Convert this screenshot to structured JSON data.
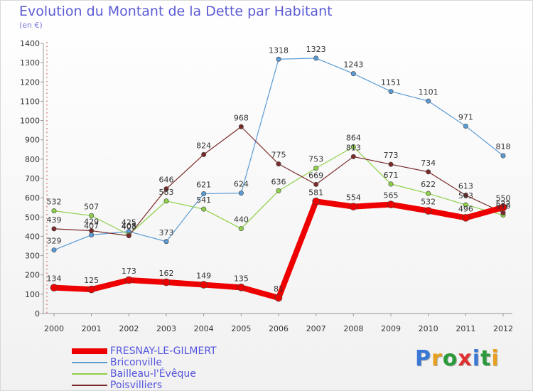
{
  "title": "Evolution du Montant de la Dette par Habitant",
  "subtitle": "(en €)",
  "logo": {
    "text": "Proxiti",
    "letter_colors": [
      "#3a78d6",
      "#e8a020",
      "#2a9a3a",
      "#e03030",
      "#3a78d6",
      "#2a9a3a",
      "#e8a020"
    ]
  },
  "chart_data": {
    "type": "line",
    "x": [
      "2000",
      "2001",
      "2002",
      "2003",
      "2004",
      "2005",
      "2006",
      "2007",
      "2008",
      "2009",
      "2010",
      "2011",
      "2012"
    ],
    "ylim": [
      0,
      1400
    ],
    "yticks": [
      0,
      100,
      200,
      300,
      400,
      500,
      600,
      700,
      800,
      900,
      1000,
      1100,
      1200,
      1300,
      1400
    ],
    "grid": false,
    "legend_position": "bottom-left",
    "series": [
      {
        "name": "FRESNAY-LE-GILMERT",
        "color": "#ee0000",
        "width": 8,
        "values": [
          134,
          125,
          173,
          162,
          149,
          135,
          81,
          581,
          554,
          565,
          532,
          496,
          550
        ],
        "labels": [
          "134",
          "125",
          "173",
          "162",
          "149",
          "135",
          "81",
          "581",
          "554",
          "565",
          "532",
          "496",
          "550"
        ]
      },
      {
        "name": "Briconville",
        "color": "#5b9bd5",
        "width": 1.2,
        "values": [
          329,
          407,
          425,
          373,
          621,
          624,
          1318,
          1323,
          1243,
          1151,
          1101,
          971,
          818
        ],
        "labels": [
          "329",
          "407",
          "425",
          "373",
          "621",
          "624",
          "1318",
          "1323",
          "1243",
          "1151",
          "1101",
          "971",
          "818"
        ]
      },
      {
        "name": "Bailleau-l'Évêque",
        "color": "#8ed04a",
        "width": 1.2,
        "values": [
          532,
          507,
          408,
          583,
          541,
          440,
          636,
          753,
          864,
          671,
          622,
          563,
          510
        ],
        "labels": [
          "532",
          "507",
          "408",
          "583",
          "541",
          "440",
          "636",
          "753",
          "864",
          "671",
          "622",
          "563",
          "510"
        ]
      },
      {
        "name": "Poisvilliers",
        "color": "#7a2a2a",
        "width": 1.2,
        "values": [
          439,
          429,
          403,
          646,
          824,
          968,
          775,
          669,
          813,
          773,
          734,
          613,
          522
        ],
        "labels": [
          "439",
          "429",
          "403",
          "646",
          "824",
          "968",
          "775",
          "669",
          "813",
          "773",
          "734",
          "613",
          "522"
        ]
      }
    ]
  }
}
